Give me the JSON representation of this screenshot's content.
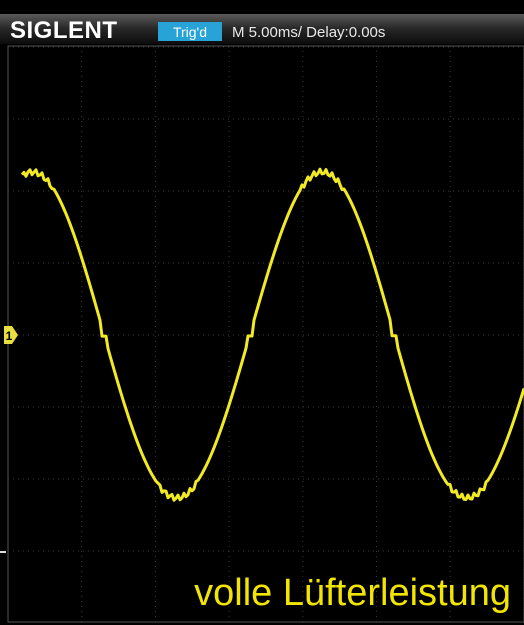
{
  "header": {
    "brand": "SIGLENT",
    "status": "Trig'd",
    "timebase": "M 5.00ms/ Delay:0.00s"
  },
  "screen": {
    "channel_marker": "1",
    "caption": "volle Lüfterleistung"
  }
}
